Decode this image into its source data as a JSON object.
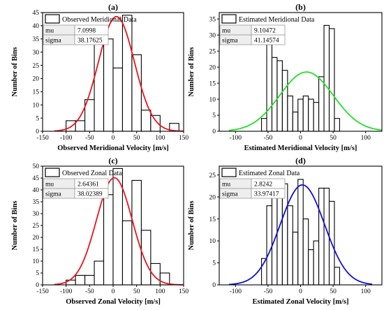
{
  "chart_data": [
    {
      "type": "bar",
      "panel_label": "(a)",
      "xlabel": "Observed Meridional Velocity [m/s]",
      "ylabel": "Number of Bins",
      "xlim": [
        -150,
        150
      ],
      "ylim": [
        0,
        45
      ],
      "xticks": [
        -150,
        -100,
        -50,
        0,
        50,
        100,
        150
      ],
      "yticks": [
        0,
        5,
        10,
        15,
        20,
        25,
        30,
        35,
        40,
        45
      ],
      "bin_width": 20,
      "bin_left_edges": [
        -100,
        -80,
        -60,
        -40,
        -20,
        0,
        20,
        40,
        60,
        80,
        100,
        120
      ],
      "values": [
        4,
        4,
        12,
        39,
        35,
        24,
        44,
        29,
        8,
        6,
        0,
        3
      ],
      "legend": "Observed Meridional Data",
      "stats": [
        {
          "label": "mu",
          "value": "7.0998"
        },
        {
          "label": "sigma",
          "value": "38.17625"
        }
      ],
      "fit": {
        "color": "#e8151b",
        "x_range": [
          -125,
          150
        ]
      }
    },
    {
      "type": "bar",
      "panel_label": "(b)",
      "xlabel": "Estimated Meridional Velocity [m/s]",
      "ylabel": "Number of Bins",
      "xlim": [
        -125,
        125
      ],
      "ylim": [
        0,
        37
      ],
      "xticks": [
        -100,
        -50,
        0,
        50,
        100
      ],
      "yticks": [
        0,
        5,
        10,
        15,
        20,
        25,
        30,
        35
      ],
      "bin_width": 8,
      "bin_left_edges": [
        -60,
        -52,
        -44,
        -36,
        -28,
        -20,
        -12,
        -4,
        4,
        12,
        20,
        28,
        36,
        44,
        52,
        60
      ],
      "values": [
        4,
        27,
        23,
        22,
        19,
        11,
        6,
        10,
        11,
        10,
        9,
        17,
        33,
        32,
        4,
        0
      ],
      "legend": "Estimated Meridional Data",
      "stats": [
        {
          "label": "mu",
          "value": "9.10472"
        },
        {
          "label": "sigma",
          "value": "41.14574"
        }
      ],
      "fit": {
        "color": "#22e02a",
        "x_range": [
          -110,
          125
        ]
      }
    },
    {
      "type": "bar",
      "panel_label": "(c)",
      "xlabel": "Observed Zonal Velocity [m/s]",
      "ylabel": "Number of Bins",
      "xlim": [
        -150,
        150
      ],
      "ylim": [
        0,
        50
      ],
      "xticks": [
        -150,
        -100,
        -50,
        0,
        50,
        100,
        150
      ],
      "yticks": [
        0,
        5,
        10,
        15,
        20,
        25,
        30,
        35,
        40,
        45,
        50
      ],
      "bin_width": 20,
      "bin_left_edges": [
        -100,
        -80,
        -60,
        -40,
        -20,
        0,
        20,
        40,
        60,
        80,
        100
      ],
      "values": [
        2,
        4,
        4,
        10,
        38,
        49,
        27,
        44,
        23,
        9,
        5
      ],
      "legend": "Observed Zonal Data",
      "stats": [
        {
          "label": "mu",
          "value": "2.64361"
        },
        {
          "label": "sigma",
          "value": "38.02389"
        }
      ],
      "fit": {
        "color": "#e8151b",
        "x_range": [
          -125,
          150
        ]
      }
    },
    {
      "type": "bar",
      "panel_label": "(d)",
      "xlabel": "Estimated Zonal Velocity [m/s]",
      "ylabel": "Number of Bins",
      "xlim": [
        -125,
        125
      ],
      "ylim": [
        0,
        27
      ],
      "xticks": [
        -100,
        -50,
        0,
        50,
        100
      ],
      "yticks": [
        0,
        5,
        10,
        15,
        20,
        25
      ],
      "bin_width": 8,
      "bin_left_edges": [
        -60,
        -52,
        -44,
        -36,
        -28,
        -20,
        -12,
        -4,
        4,
        12,
        20,
        28,
        36,
        44,
        52
      ],
      "values": [
        6,
        18,
        21,
        20,
        23,
        18,
        12,
        24,
        15,
        8,
        10,
        22,
        22,
        19,
        4
      ],
      "legend": "Estimated Zonal Data",
      "stats": [
        {
          "label": "mu",
          "value": "2.8242"
        },
        {
          "label": "sigma",
          "value": "33.97417"
        }
      ],
      "fit": {
        "color": "#1010d8",
        "x_range": [
          -110,
          110
        ]
      }
    }
  ]
}
